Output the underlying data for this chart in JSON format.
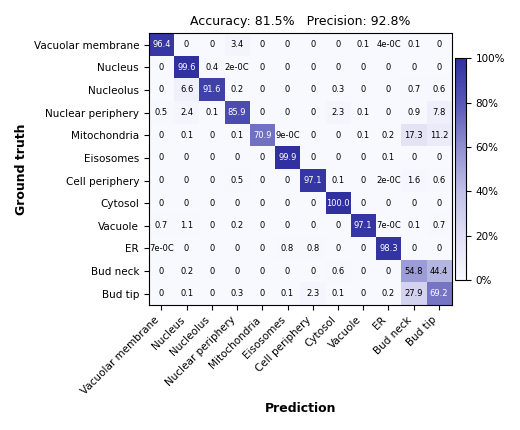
{
  "title": "Accuracy: 81.5%   Precision: 92.8%",
  "xlabel": "Prediction",
  "ylabel": "Ground truth",
  "classes": [
    "Vacuolar membrane",
    "Nucleus",
    "Nucleolus",
    "Nuclear periphery",
    "Mitochondria",
    "Eisosomes",
    "Cell periphery",
    "Cytosol",
    "Vacuole",
    "ER",
    "Bud neck",
    "Bud tip"
  ],
  "numeric_matrix": [
    [
      96.4,
      0,
      0,
      3.4,
      0,
      0,
      0,
      0,
      0.1,
      0.0001,
      0.1,
      0
    ],
    [
      0,
      99.6,
      0.4,
      0.0001,
      0,
      0,
      0,
      0,
      0,
      0,
      0,
      0
    ],
    [
      0,
      6.6,
      91.6,
      0.2,
      0,
      0,
      0,
      0.3,
      0,
      0,
      0.7,
      0.6
    ],
    [
      0.5,
      2.4,
      0.1,
      85.9,
      0,
      0,
      0,
      2.3,
      0.1,
      0,
      0.9,
      7.8
    ],
    [
      0,
      0.1,
      0,
      0.1,
      70.9,
      0.0001,
      0,
      0,
      0.1,
      0.2,
      17.3,
      11.2
    ],
    [
      0,
      0,
      0,
      0,
      0,
      99.9,
      0,
      0,
      0,
      0.1,
      0,
      0
    ],
    [
      0,
      0,
      0,
      0.5,
      0,
      0,
      97.1,
      0.1,
      0,
      0.0001,
      1.6,
      0.6
    ],
    [
      0,
      0,
      0,
      0,
      0,
      0,
      0,
      100.0,
      0,
      0,
      0,
      0
    ],
    [
      0.7,
      1.1,
      0,
      0.2,
      0,
      0,
      0,
      0,
      97.1,
      0.0001,
      0.1,
      0.7
    ],
    [
      0.0001,
      0,
      0,
      0,
      0,
      0.8,
      0.8,
      0,
      0,
      98.3,
      0,
      0
    ],
    [
      0,
      0.2,
      0,
      0,
      0,
      0,
      0,
      0.6,
      0,
      0,
      54.8,
      44.4
    ],
    [
      0,
      0.1,
      0,
      0.3,
      0,
      0.1,
      2.3,
      0.1,
      0,
      0.2,
      27.9,
      69.2
    ]
  ],
  "text_matrix": [
    [
      "96.4",
      "0",
      "0",
      "3.4",
      "0",
      "0",
      "0",
      "0",
      "0.1",
      "4e-0C",
      "0.1",
      "0"
    ],
    [
      "0",
      "99.6",
      "0.4",
      "2e-0C",
      "0",
      "0",
      "0",
      "0",
      "0",
      "0",
      "0",
      "0"
    ],
    [
      "0",
      "6.6",
      "91.6",
      "0.2",
      "0",
      "0",
      "0",
      "0.3",
      "0",
      "0",
      "0.7",
      "0.6"
    ],
    [
      "0.5",
      "2.4",
      "0.1",
      "85.9",
      "0",
      "0",
      "0",
      "2.3",
      "0.1",
      "0",
      "0.9",
      "7.8"
    ],
    [
      "0",
      "0.1",
      "0",
      "0.1",
      "70.9",
      "9e-0C",
      "0",
      "0",
      "0.1",
      "0.2",
      "17.3",
      "11.2"
    ],
    [
      "0",
      "0",
      "0",
      "0",
      "0",
      "99.9",
      "0",
      "0",
      "0",
      "0.1",
      "0",
      "0"
    ],
    [
      "0",
      "0",
      "0",
      "0.5",
      "0",
      "0",
      "97.1",
      "0.1",
      "0",
      "2e-0C",
      "1.6",
      "0.6"
    ],
    [
      "0",
      "0",
      "0",
      "0",
      "0",
      "0",
      "0",
      "100.0",
      "0",
      "0",
      "0",
      "0"
    ],
    [
      "0.7",
      "1.1",
      "0",
      "0.2",
      "0",
      "0",
      "0",
      "0",
      "97.1",
      "7e-0C",
      "0.1",
      "0.7"
    ],
    [
      "7e-0C",
      "0",
      "0",
      "0",
      "0",
      "0.8",
      "0.8",
      "0",
      "0",
      "98.3",
      "0",
      "0"
    ],
    [
      "0",
      "0.2",
      "0",
      "0",
      "0",
      "0",
      "0",
      "0.6",
      "0",
      "0",
      "54.8",
      "44.4"
    ],
    [
      "0",
      "0.1",
      "0",
      "0.3",
      "0",
      "0.1",
      "2.3",
      "0.1",
      "0",
      "0.2",
      "27.9",
      "69.2"
    ]
  ],
  "colorbar_ticks": [
    0,
    20,
    40,
    60,
    80,
    100
  ],
  "colorbar_ticklabels": [
    "0%",
    "20%",
    "40%",
    "60%",
    "80%",
    "100%"
  ],
  "title_fontsize": 9,
  "label_fontsize": 9,
  "tick_fontsize": 7.5,
  "cell_fontsize": 6.0,
  "white_threshold": 60
}
